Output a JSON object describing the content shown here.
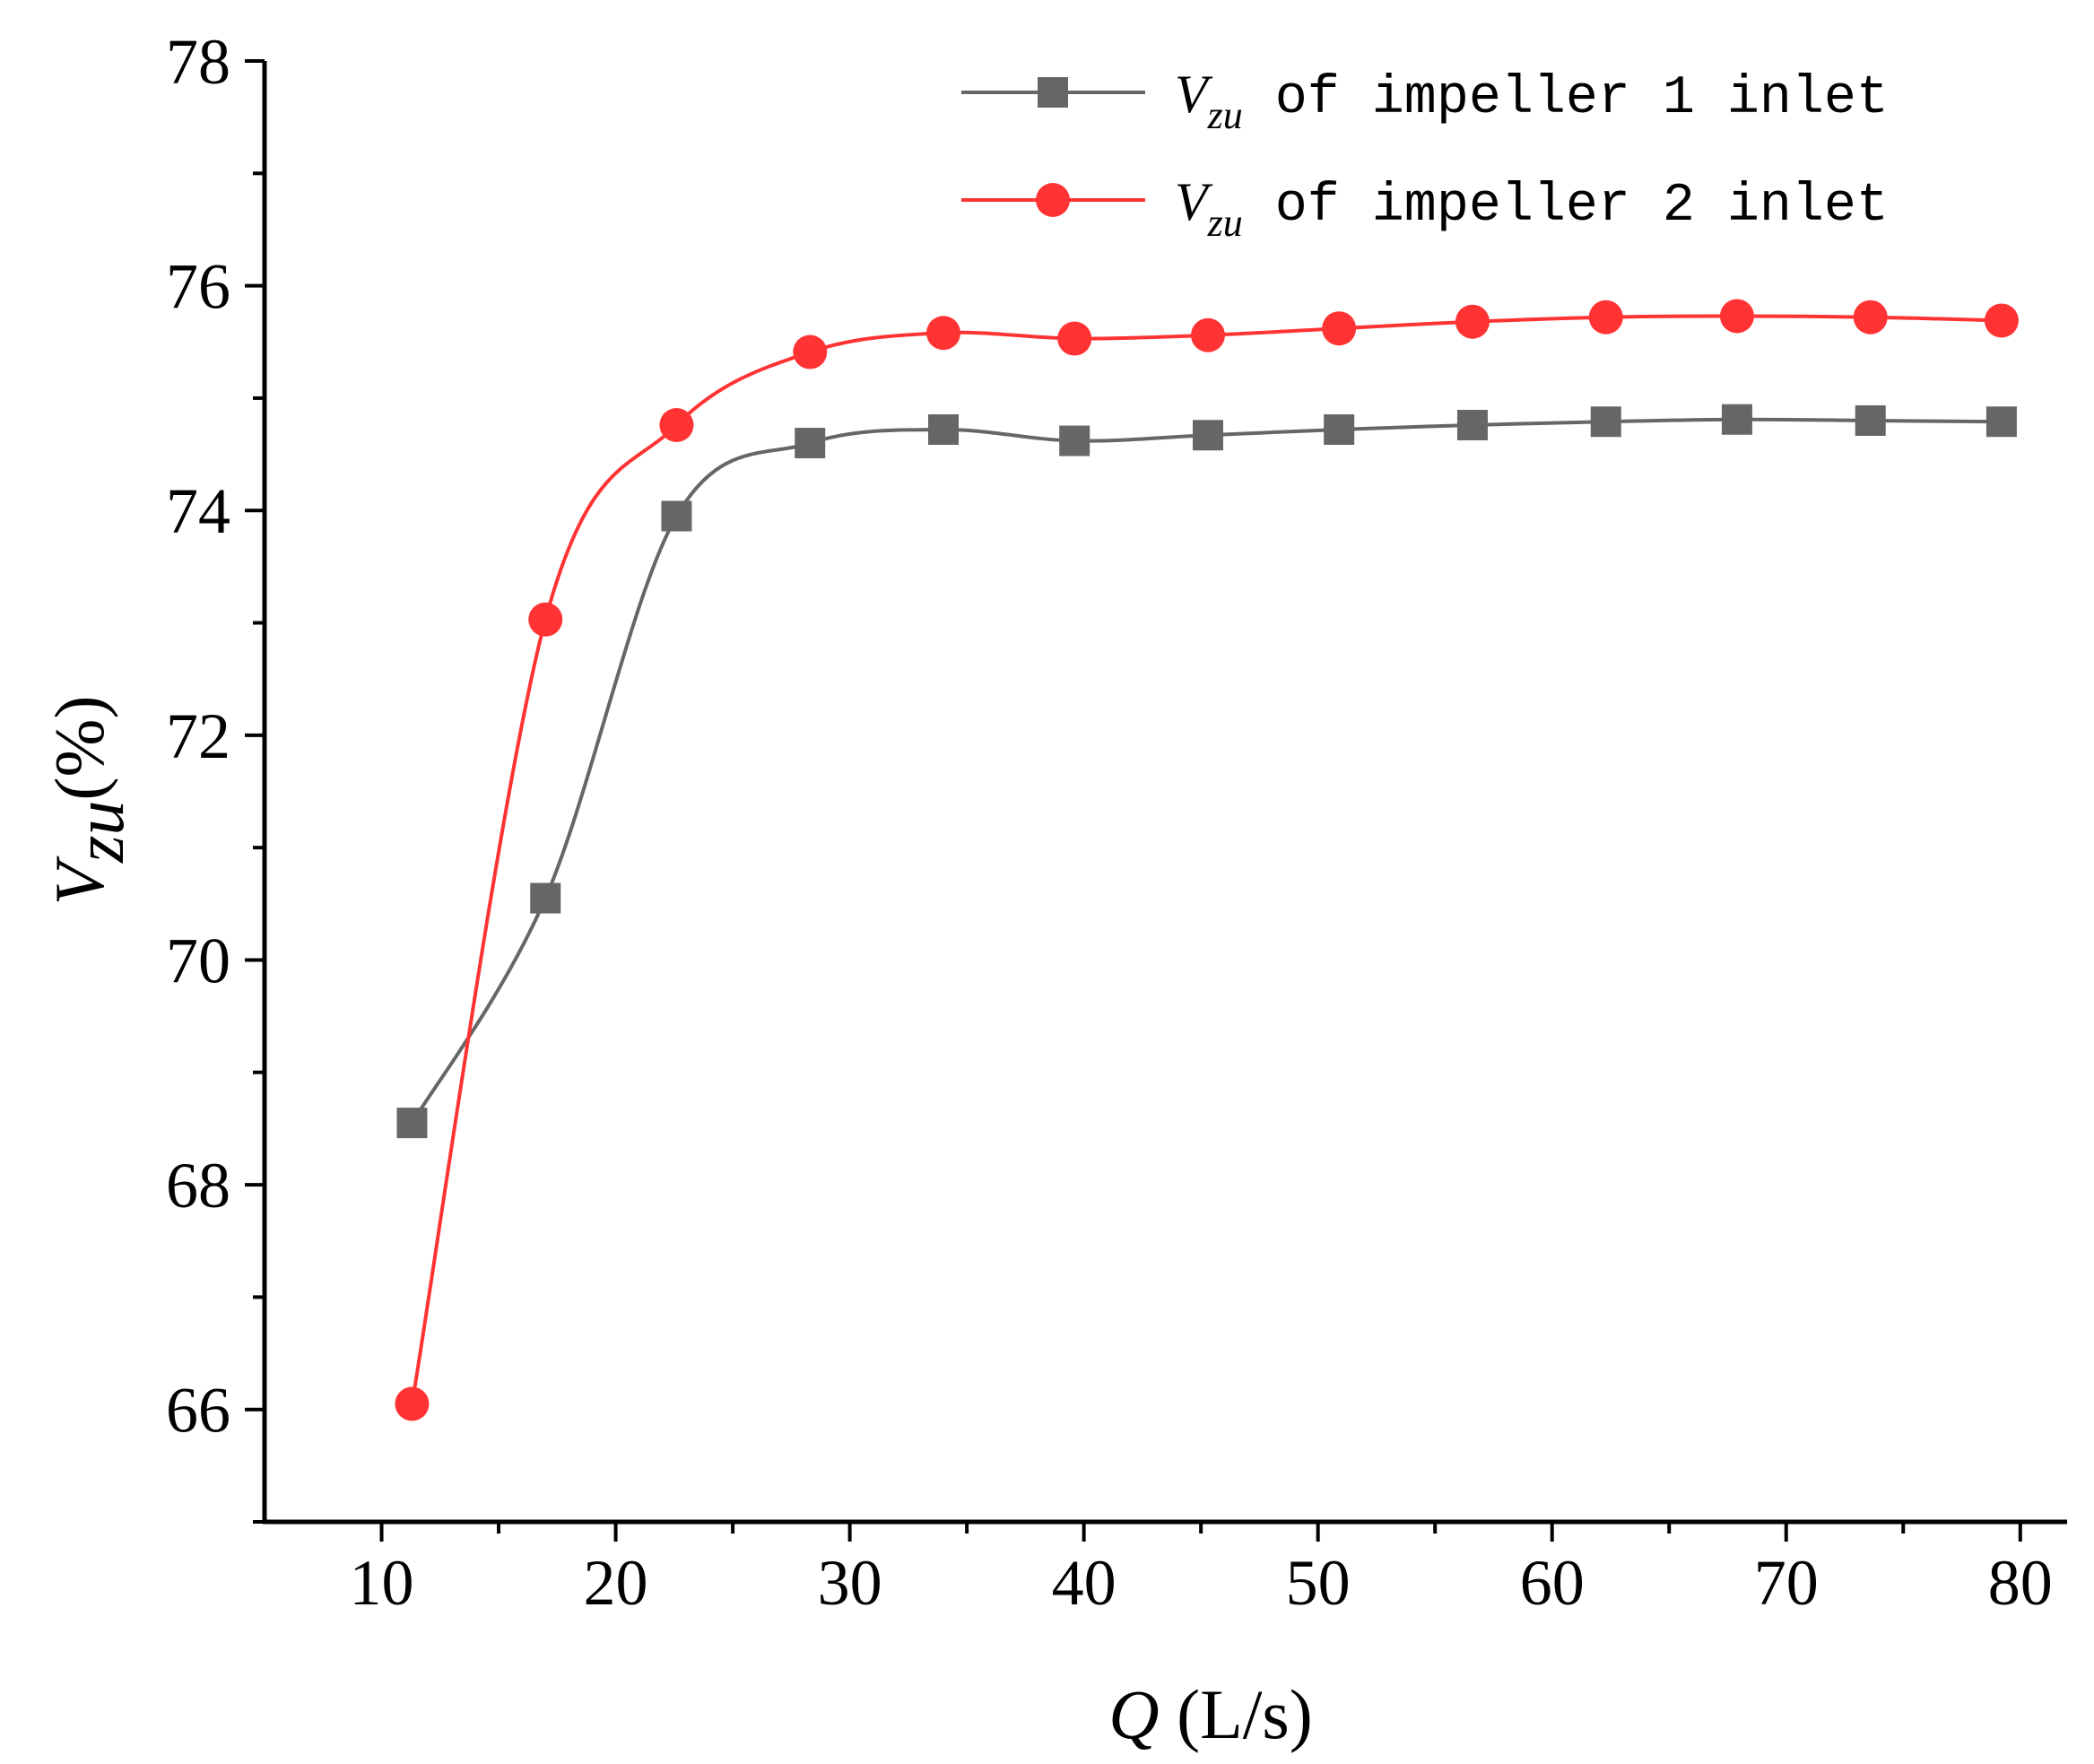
{
  "chart_data": {
    "type": "line",
    "title": "",
    "xlabel": {
      "var": "Q",
      "unit": " (L/s)"
    },
    "ylabel": {
      "var": "V",
      "sub": "zu",
      "unit": "(%)"
    },
    "xlim": [
      5,
      82
    ],
    "ylim": [
      65,
      78
    ],
    "xticks": [
      10,
      20,
      30,
      40,
      50,
      60,
      70,
      80
    ],
    "xtick_labels": [
      "10",
      "20",
      "30",
      "40",
      "50",
      "60",
      "70",
      "80"
    ],
    "yticks": [
      66,
      68,
      70,
      72,
      74,
      76,
      78
    ],
    "ytick_labels": [
      "66",
      "68",
      "70",
      "72",
      "74",
      "76",
      "78"
    ],
    "grid": false,
    "legend_position": "top-right",
    "x": [
      11.3,
      17,
      22.6,
      28.3,
      34,
      39.6,
      45.3,
      50.9,
      56.6,
      62.3,
      67.9,
      73.6,
      79.2
    ],
    "series": [
      {
        "name": {
          "var": "V",
          "sub": "zu",
          "rest": " of impeller 1 inlet"
        },
        "marker": "square",
        "color": "#666666",
        "values": [
          68.55,
          70.55,
          73.95,
          74.6,
          74.72,
          74.62,
          74.67,
          74.72,
          74.76,
          74.79,
          74.81,
          74.8,
          74.79
        ]
      },
      {
        "name": {
          "var": "V",
          "sub": "zu",
          "rest": " of impeller 2 inlet"
        },
        "marker": "circle",
        "color": "#ff3333",
        "values": [
          66.05,
          73.03,
          74.76,
          75.41,
          75.58,
          75.53,
          75.56,
          75.62,
          75.68,
          75.72,
          75.73,
          75.72,
          75.69
        ]
      }
    ]
  }
}
